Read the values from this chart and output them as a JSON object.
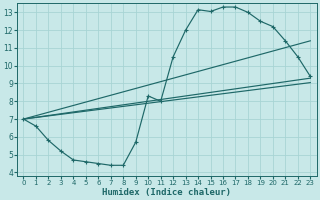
{
  "xlabel": "Humidex (Indice chaleur)",
  "bg_color": "#c8e8e8",
  "grid_color": "#a8d4d4",
  "line_color": "#1e6868",
  "xlim": [
    -0.5,
    23.5
  ],
  "ylim": [
    3.8,
    13.5
  ],
  "xticks": [
    0,
    1,
    2,
    3,
    4,
    5,
    6,
    7,
    8,
    9,
    10,
    11,
    12,
    13,
    14,
    15,
    16,
    17,
    18,
    19,
    20,
    21,
    22,
    23
  ],
  "yticks": [
    4,
    5,
    6,
    7,
    8,
    9,
    10,
    11,
    12,
    13
  ],
  "curve1_x": [
    0,
    1,
    2,
    3,
    4,
    5,
    6,
    7,
    8,
    9,
    10,
    11,
    12,
    13,
    14,
    15,
    16,
    17,
    18,
    19,
    20,
    21,
    22,
    23
  ],
  "curve1_y": [
    7.0,
    6.6,
    5.8,
    5.2,
    4.7,
    4.6,
    4.5,
    4.4,
    4.4,
    5.7,
    8.3,
    8.0,
    10.5,
    12.0,
    13.15,
    13.05,
    13.3,
    13.3,
    13.0,
    12.5,
    12.2,
    11.4,
    10.5,
    9.4
  ],
  "line1_x": [
    0,
    23
  ],
  "line1_y": [
    7.0,
    11.4
  ],
  "line2_x": [
    0,
    23
  ],
  "line2_y": [
    7.0,
    9.3
  ],
  "line3_x": [
    0,
    23
  ],
  "line3_y": [
    7.0,
    9.05
  ]
}
